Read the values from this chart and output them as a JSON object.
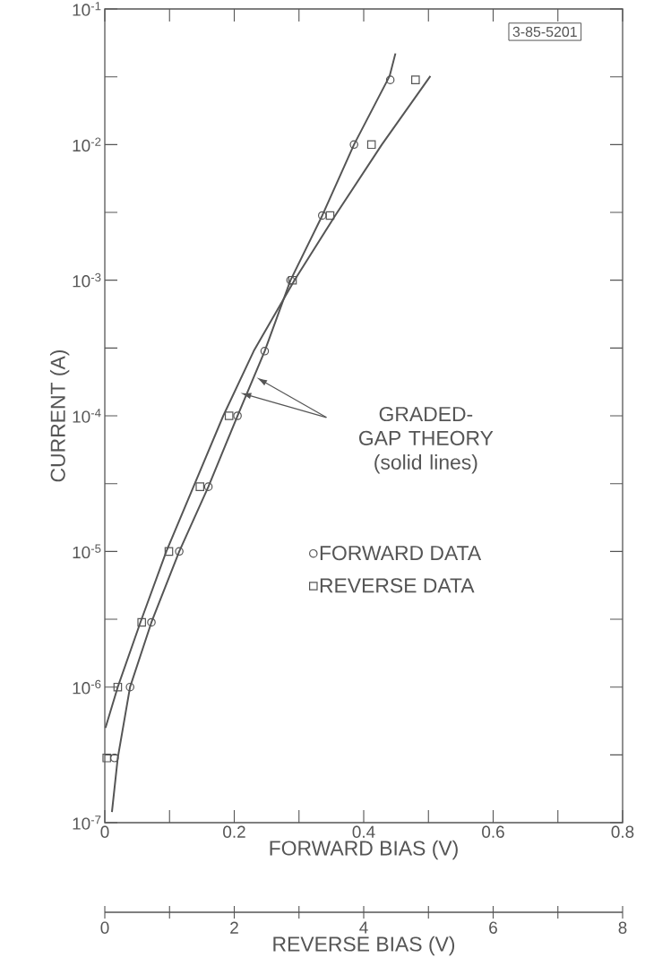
{
  "chart_data": {
    "type": "scatter",
    "log": "y",
    "xlabel": "FORWARD BIAS (V)",
    "ylabel": "CURRENT (A)",
    "x2label": "REVERSE BIAS (V)",
    "xlim": [
      0,
      0.8
    ],
    "xticks": [
      0,
      {
        "value": 0.1,
        "label": null
      },
      0.2,
      {
        "value": 0.3,
        "label": null
      },
      0.4,
      {
        "value": 0.5,
        "label": null
      },
      0.6,
      {
        "value": 0.7,
        "label": null
      },
      0.8
    ],
    "x2lim": [
      0,
      8
    ],
    "x2ticks": [
      0,
      {
        "value": 1,
        "label": null
      },
      2,
      {
        "value": 3,
        "label": null
      },
      4,
      {
        "value": 5,
        "label": null
      },
      6,
      {
        "value": 7,
        "label": null
      },
      8
    ],
    "ylim": [
      1e-07,
      0.1
    ],
    "yticks": [
      {
        "value": 1e-07,
        "label": "10$^{-7}$"
      },
      {
        "value": 3.16e-07,
        "label": null
      },
      {
        "value": 1e-06,
        "label": "10$^{-6}$"
      },
      {
        "value": 3.16e-06,
        "label": null
      },
      {
        "value": 1e-05,
        "label": "10$^{-5}$"
      },
      {
        "value": 3.16e-05,
        "label": null
      },
      {
        "value": 0.0001,
        "label": "10$^{-4}$"
      },
      {
        "value": 0.000316,
        "label": null
      },
      {
        "value": 0.001,
        "label": "10$^{-3}$"
      },
      {
        "value": 0.00316,
        "label": null
      },
      {
        "value": 0.01,
        "label": "10$^{-2}$"
      },
      {
        "value": 0.0316,
        "label": null
      },
      {
        "value": 0.1,
        "label": "10$^{-1}$"
      }
    ],
    "legend": "right",
    "annotations": [
      "3-85-5201",
      "GRADED-GAP THEORY (solid lines)"
    ],
    "series": [
      {
        "name": "FORWARD DATA",
        "marker": "circle",
        "color": "#555555",
        "x": [
          0.015,
          0.039,
          0.072,
          0.115,
          0.16,
          0.205,
          0.247,
          0.287,
          0.336,
          0.385,
          0.441
        ],
        "values": [
          3e-07,
          1e-06,
          3e-06,
          1e-05,
          3e-05,
          0.0001,
          0.0003,
          0.001,
          0.003,
          0.01,
          0.03
        ]
      },
      {
        "name": "REVERSE DATA",
        "marker": "square",
        "axis": "x2",
        "color": "#555555",
        "x": [
          0.03,
          0.2,
          0.57,
          0.99,
          1.47,
          1.92,
          2.9,
          3.48,
          4.12,
          4.8
        ],
        "values": [
          3e-07,
          1e-06,
          3e-06,
          1e-05,
          3e-05,
          0.0001,
          0.001,
          0.003,
          0.01,
          0.03
        ]
      },
      {
        "type": "line",
        "line_style": "solid",
        "color": "#555555",
        "x": [
          0.011,
          0.02,
          0.039,
          0.072,
          0.115,
          0.16,
          0.205,
          0.247,
          0.287,
          0.336,
          0.385,
          0.44,
          0.449
        ],
        "values": [
          1.2e-07,
          3e-07,
          1e-06,
          3e-06,
          1e-05,
          3e-05,
          0.0001,
          0.0003,
          0.001,
          0.003,
          0.01,
          0.032,
          0.047
        ]
      },
      {
        "type": "line",
        "line_style": "solid",
        "axis": "x2",
        "color": "#555555",
        "x": [
          0.01,
          0.2,
          0.55,
          0.95,
          1.37,
          1.83,
          2.3,
          2.93,
          3.56,
          4.28,
          5.03
        ],
        "values": [
          5e-07,
          1e-06,
          3e-06,
          1e-05,
          3e-05,
          0.0001,
          0.0003,
          0.001,
          0.003,
          0.01,
          0.032
        ]
      }
    ]
  }
}
